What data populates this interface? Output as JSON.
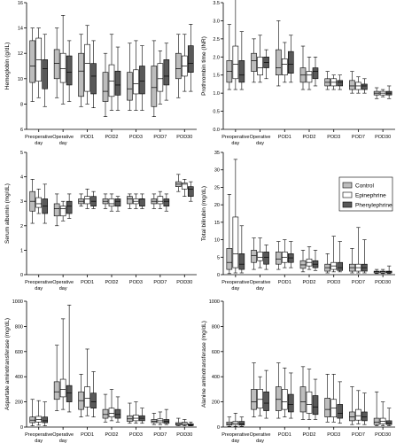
{
  "legend": {
    "items": [
      {
        "label": "Control",
        "color": "#bdbdbd"
      },
      {
        "label": "Epinephrine",
        "color": "#ffffff"
      },
      {
        "label": "Phenylephrine",
        "color": "#595959"
      }
    ]
  },
  "chart_data": [
    {
      "type": "box",
      "ylabel": "Hemoglobin (g/dL)",
      "ylim": [
        6,
        16
      ],
      "yticks": [
        6,
        8,
        10,
        12,
        14,
        16
      ],
      "categories": [
        "Preoperative day",
        "Operative day",
        "POD1",
        "POD2",
        "POD3",
        "POD7",
        "POD30"
      ],
      "series": [
        {
          "name": "Control",
          "boxes": [
            [
              8.2,
              9.7,
              11.0,
              13.0,
              14.0
            ],
            [
              8.5,
              10.0,
              11.2,
              12.3,
              14.0
            ],
            [
              7.8,
              8.6,
              10.6,
              12.0,
              13.5
            ],
            [
              7.0,
              8.2,
              9.0,
              10.5,
              12.0
            ],
            [
              7.5,
              8.3,
              9.2,
              10.5,
              12.8
            ],
            [
              7.0,
              7.8,
              9.3,
              11.0,
              13.0
            ],
            [
              8.5,
              10.0,
              10.8,
              12.0,
              13.5
            ]
          ]
        },
        {
          "name": "Epinephrine",
          "boxes": [
            [
              8.5,
              9.8,
              11.5,
              13.2,
              14.0
            ],
            [
              8.0,
              9.7,
              10.8,
              12.0,
              15.0
            ],
            [
              8.0,
              9.0,
              11.2,
              12.7,
              14.2
            ],
            [
              7.5,
              8.6,
              9.8,
              11.1,
              13.5
            ],
            [
              7.5,
              8.8,
              9.6,
              10.7,
              13.0
            ],
            [
              8.0,
              9.0,
              10.0,
              11.2,
              12.2
            ],
            [
              9.0,
              10.2,
              11.0,
              11.8,
              13.5
            ]
          ]
        },
        {
          "name": "Phenylephrine",
          "boxes": [
            [
              7.8,
              9.2,
              10.8,
              11.5,
              13.5
            ],
            [
              8.2,
              9.5,
              10.5,
              11.8,
              13.0
            ],
            [
              7.7,
              8.8,
              10.2,
              11.2,
              13.0
            ],
            [
              7.5,
              8.7,
              9.5,
              10.6,
              12.5
            ],
            [
              7.5,
              8.8,
              9.8,
              11.0,
              12.6
            ],
            [
              8.3,
              9.5,
              10.2,
              11.5,
              12.8
            ],
            [
              9.0,
              10.5,
              11.2,
              12.6,
              14.3
            ]
          ]
        }
      ]
    },
    {
      "type": "box",
      "ylabel": "Prothrombin time (INR)",
      "ylim": [
        0,
        3.5
      ],
      "yticks": [
        0.0,
        0.5,
        1.0,
        1.5,
        2.0,
        2.5,
        3.0,
        3.5
      ],
      "categories": [
        "Preoperative day",
        "Operative day",
        "POD1",
        "POD2",
        "POD3",
        "POD7",
        "POD30"
      ],
      "series": [
        {
          "name": "Control",
          "boxes": [
            [
              1.1,
              1.3,
              1.6,
              1.9,
              2.9
            ],
            [
              1.3,
              1.6,
              1.9,
              2.1,
              2.5
            ],
            [
              1.2,
              1.5,
              1.7,
              2.2,
              3.0
            ],
            [
              1.1,
              1.3,
              1.5,
              1.7,
              2.3
            ],
            [
              1.1,
              1.2,
              1.3,
              1.4,
              1.6
            ],
            [
              1.0,
              1.1,
              1.2,
              1.35,
              1.6
            ],
            [
              0.85,
              0.95,
              1.0,
              1.05,
              1.15
            ]
          ]
        },
        {
          "name": "Epinephrine",
          "boxes": [
            [
              1.1,
              1.4,
              1.8,
              2.3,
              3.75
            ],
            [
              1.3,
              1.5,
              1.7,
              2.0,
              2.6
            ],
            [
              1.3,
              1.5,
              1.8,
              1.95,
              2.4
            ],
            [
              1.1,
              1.3,
              1.5,
              1.6,
              2.0
            ],
            [
              1.1,
              1.2,
              1.3,
              1.4,
              1.5
            ],
            [
              1.0,
              1.1,
              1.2,
              1.3,
              1.45
            ],
            [
              0.9,
              0.95,
              1.0,
              1.05,
              1.1
            ]
          ]
        },
        {
          "name": "Phenylephrine",
          "boxes": [
            [
              1.1,
              1.3,
              1.5,
              1.9,
              2.7
            ],
            [
              1.4,
              1.7,
              1.85,
              2.0,
              2.2
            ],
            [
              1.3,
              1.55,
              1.8,
              2.15,
              2.6
            ],
            [
              1.2,
              1.4,
              1.6,
              1.7,
              2.0
            ],
            [
              1.1,
              1.2,
              1.3,
              1.35,
              1.5
            ],
            [
              1.0,
              1.1,
              1.2,
              1.25,
              1.4
            ],
            [
              0.85,
              0.95,
              1.0,
              1.05,
              1.2
            ]
          ]
        }
      ]
    },
    {
      "type": "box",
      "ylabel": "Serum albumin (mg/dL)",
      "ylim": [
        0,
        5
      ],
      "yticks": [
        0,
        1,
        2,
        3,
        4,
        5
      ],
      "categories": [
        "Preoperative day",
        "Operative day",
        "POD1",
        "POD2",
        "POD3",
        "POD7",
        "POD30"
      ],
      "series": [
        {
          "name": "Control",
          "boxes": [
            [
              2.1,
              2.6,
              3.0,
              3.4,
              3.9
            ],
            [
              2.0,
              2.4,
              2.7,
              2.9,
              3.3
            ],
            [
              2.8,
              2.9,
              3.0,
              3.1,
              3.3
            ],
            [
              2.7,
              2.9,
              3.0,
              3.1,
              3.3
            ],
            [
              2.7,
              2.9,
              3.1,
              3.2,
              3.3
            ],
            [
              2.7,
              2.9,
              3.0,
              3.1,
              3.3
            ],
            [
              3.4,
              3.6,
              3.7,
              3.8,
              4.1
            ]
          ]
        },
        {
          "name": "Epinephrine",
          "boxes": [
            [
              2.5,
              2.75,
              2.9,
              3.15,
              3.5
            ],
            [
              2.2,
              2.4,
              2.7,
              2.8,
              3.0
            ],
            [
              2.7,
              2.9,
              3.1,
              3.2,
              3.5
            ],
            [
              2.6,
              2.8,
              2.9,
              3.1,
              3.3
            ],
            [
              2.7,
              2.9,
              3.0,
              3.1,
              3.3
            ],
            [
              2.7,
              2.9,
              3.0,
              3.2,
              3.4
            ],
            [
              3.2,
              3.5,
              3.7,
              3.75,
              3.9
            ]
          ]
        },
        {
          "name": "Phenylephrine",
          "boxes": [
            [
              2.1,
              2.5,
              2.8,
              3.1,
              3.7
            ],
            [
              2.3,
              2.5,
              2.8,
              3.0,
              3.3
            ],
            [
              2.7,
              2.8,
              3.0,
              3.2,
              3.4
            ],
            [
              2.6,
              2.8,
              3.0,
              3.1,
              3.2
            ],
            [
              2.7,
              2.8,
              3.1,
              3.1,
              3.3
            ],
            [
              2.6,
              2.8,
              3.0,
              3.1,
              3.3
            ],
            [
              3.0,
              3.2,
              3.5,
              3.6,
              3.8
            ]
          ]
        }
      ]
    },
    {
      "type": "box",
      "ylabel": "Total bilirubin (mg/dL)",
      "ylim": [
        0,
        35
      ],
      "yticks": [
        0,
        5,
        10,
        15,
        20,
        25,
        30,
        35
      ],
      "categories": [
        "Preoperative day",
        "Operative day",
        "POD1",
        "POD2",
        "POD3",
        "POD7",
        "POD30"
      ],
      "series": [
        {
          "name": "Control",
          "boxes": [
            [
              0.3,
              1.5,
              3.5,
              7.5,
              23.0
            ],
            [
              1.5,
              3.5,
              5.5,
              7.0,
              10.5
            ],
            [
              1.5,
              3.0,
              4.5,
              6.5,
              9.5
            ],
            [
              0.8,
              1.8,
              2.8,
              4.0,
              7.0
            ],
            [
              0.5,
              1.0,
              2.0,
              3.0,
              6.0
            ],
            [
              0.5,
              1.0,
              2.0,
              3.0,
              7.5
            ],
            [
              0.3,
              0.5,
              0.8,
              1.0,
              1.5
            ]
          ]
        },
        {
          "name": "Epinephrine",
          "boxes": [
            [
              0.5,
              2.0,
              6.0,
              16.5,
              33.0
            ],
            [
              2.0,
              4.0,
              5.0,
              6.5,
              10.5
            ],
            [
              2.0,
              3.5,
              5.0,
              6.5,
              10.0
            ],
            [
              1.5,
              2.5,
              3.5,
              4.5,
              8.0
            ],
            [
              0.8,
              1.5,
              2.5,
              3.5,
              11.0
            ],
            [
              0.5,
              1.0,
              2.0,
              3.0,
              13.5
            ],
            [
              0.3,
              0.5,
              0.8,
              1.0,
              1.5
            ]
          ]
        },
        {
          "name": "Phenylephrine",
          "boxes": [
            [
              0.5,
              1.5,
              3.0,
              6.0,
              14.0
            ],
            [
              1.5,
              3.0,
              5.0,
              6.5,
              8.5
            ],
            [
              2.0,
              3.5,
              4.8,
              6.0,
              9.5
            ],
            [
              1.2,
              2.0,
              3.0,
              4.0,
              7.0
            ],
            [
              0.8,
              1.2,
              2.0,
              3.5,
              9.5
            ],
            [
              0.5,
              1.0,
              2.0,
              3.0,
              10.0
            ],
            [
              0.3,
              0.5,
              0.8,
              1.0,
              2.5
            ]
          ]
        }
      ]
    },
    {
      "type": "box",
      "ylabel": "Aspartate aminotransferase (mg/dL)",
      "ylim": [
        0,
        1000
      ],
      "yticks": [
        0,
        200,
        400,
        600,
        800,
        1000
      ],
      "categories": [
        "Preoperative day",
        "Operative day",
        "POD1",
        "POD2",
        "POD3",
        "POD7",
        "POD30"
      ],
      "series": [
        {
          "name": "Control",
          "boxes": [
            [
              10,
              35,
              55,
              80,
              220
            ],
            [
              130,
              220,
              280,
              360,
              650
            ],
            [
              80,
              140,
              210,
              280,
              420
            ],
            [
              40,
              70,
              100,
              140,
              260
            ],
            [
              30,
              45,
              65,
              90,
              190
            ],
            [
              20,
              35,
              45,
              60,
              110
            ],
            [
              10,
              15,
              25,
              35,
              70
            ]
          ]
        },
        {
          "name": "Epinephrine",
          "boxes": [
            [
              15,
              40,
              60,
              85,
              210
            ],
            [
              140,
              240,
              300,
              380,
              860
            ],
            [
              90,
              160,
              230,
              320,
              620
            ],
            [
              50,
              80,
              110,
              150,
              300
            ],
            [
              30,
              50,
              70,
              95,
              200
            ],
            [
              20,
              35,
              50,
              65,
              120
            ],
            [
              10,
              18,
              28,
              38,
              60
            ]
          ]
        },
        {
          "name": "Phenylephrine",
          "boxes": [
            [
              10,
              35,
              50,
              80,
              200
            ],
            [
              120,
              200,
              270,
              330,
              970
            ],
            [
              80,
              150,
              200,
              270,
              440
            ],
            [
              40,
              70,
              100,
              140,
              240
            ],
            [
              30,
              50,
              70,
              90,
              150
            ],
            [
              20,
              30,
              45,
              60,
              140
            ],
            [
              10,
              12,
              18,
              25,
              40
            ]
          ]
        }
      ]
    },
    {
      "type": "box",
      "ylabel": "Alanine aminotransferase (mg/dL)",
      "ylim": [
        0,
        1000
      ],
      "yticks": [
        0,
        200,
        400,
        600,
        800,
        1000
      ],
      "categories": [
        "Preoperative day",
        "Operative day",
        "POD1",
        "POD2",
        "POD3",
        "POD7",
        "POD30"
      ],
      "series": [
        {
          "name": "Control",
          "boxes": [
            [
              5,
              15,
              25,
              40,
              80
            ],
            [
              80,
              140,
              200,
              300,
              510
            ],
            [
              70,
              130,
              220,
              320,
              510
            ],
            [
              60,
              120,
              200,
              320,
              480
            ],
            [
              40,
              80,
              140,
              230,
              420
            ],
            [
              20,
              50,
              80,
              120,
              320
            ],
            [
              10,
              20,
              40,
              70,
              280
            ]
          ]
        },
        {
          "name": "Epinephrine",
          "boxes": [
            [
              5,
              20,
              30,
              45,
              110
            ],
            [
              90,
              150,
              220,
              300,
              400
            ],
            [
              80,
              140,
              200,
              300,
              470
            ],
            [
              60,
              110,
              180,
              280,
              460
            ],
            [
              40,
              80,
              150,
              220,
              420
            ],
            [
              25,
              55,
              90,
              140,
              290
            ],
            [
              10,
              25,
              45,
              70,
              200
            ]
          ]
        },
        {
          "name": "Phenylephrine",
          "boxes": [
            [
              5,
              15,
              25,
              45,
              80
            ],
            [
              70,
              130,
              190,
              280,
              450
            ],
            [
              70,
              120,
              180,
              260,
              430
            ],
            [
              60,
              100,
              160,
              250,
              380
            ],
            [
              30,
              70,
              110,
              180,
              360
            ],
            [
              20,
              50,
              80,
              120,
              270
            ],
            [
              10,
              20,
              30,
              50,
              150
            ]
          ]
        }
      ]
    }
  ]
}
